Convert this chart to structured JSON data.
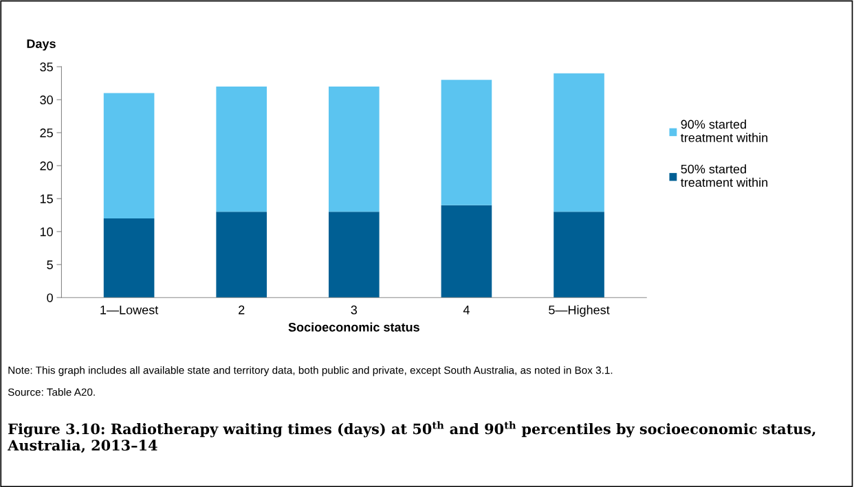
{
  "chart_data": {
    "type": "bar",
    "stacked": true,
    "title": "Figure 3.10: Radiotherapy waiting times (days) at 50$^{th}$ and 90$^{th}$ percentiles by socioeconomic status, Australia, 2013–14",
    "xlabel": "Socioeconomic status",
    "ylabel": "Days",
    "categories": [
      "1—Lowest",
      "2",
      "3",
      "4",
      "5—Highest"
    ],
    "series": [
      {
        "name": "50% started\ntreatment within",
        "color": "#005f94",
        "values": [
          12,
          13,
          13,
          14,
          13
        ]
      },
      {
        "name": "90% started\ntreatment within",
        "color": "#5bc4f0",
        "values": [
          19,
          19,
          19,
          19,
          21
        ]
      }
    ],
    "ylim": [
      0,
      35
    ],
    "yticks": [
      0,
      5,
      10,
      15,
      20,
      25,
      30,
      35
    ],
    "grid": false,
    "legend": "right",
    "annotations": [
      "Note: This graph includes all available state and territory data, both public and private, except South Australia, as noted in Box 3.1.",
      "Source: Table A20."
    ]
  }
}
